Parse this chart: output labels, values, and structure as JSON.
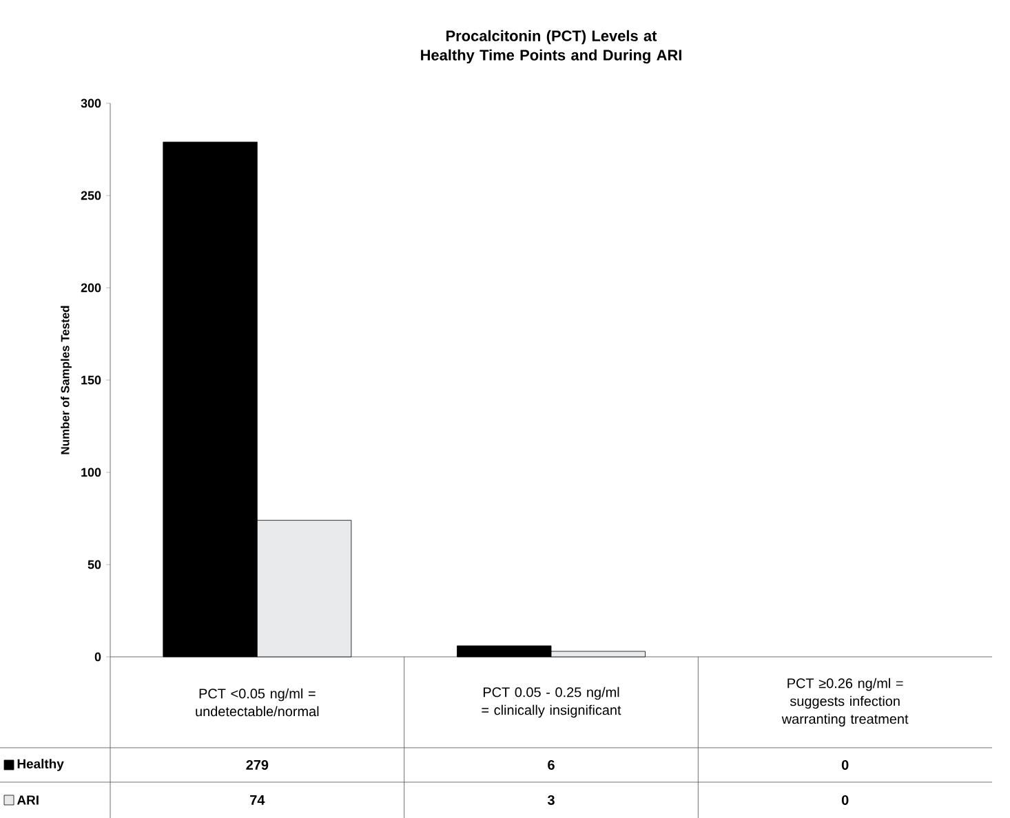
{
  "chart_data": {
    "type": "bar",
    "title": "Procalcitonin (PCT) Levels at Healthy Time Points and During ARI",
    "ylabel": "Number of Samples Tested",
    "categories": [
      "PCT <0.05 ng/ml = undetectable/normal",
      "PCT 0.05 - 0.25 ng/ml = clinically insignificant",
      "PCT ≥0.26 ng/ml = suggests infection warranting treatment"
    ],
    "series": [
      {
        "name": "Healthy",
        "color": "#000000",
        "values": [
          279,
          6,
          0
        ]
      },
      {
        "name": "ARI",
        "color": "#e8eaec",
        "values": [
          74,
          3,
          0
        ]
      }
    ],
    "ylim": [
      0,
      300
    ],
    "yticks": [
      0,
      50,
      100,
      150,
      200,
      250,
      300
    ],
    "data_labels": true,
    "legend": "bottom left"
  }
}
